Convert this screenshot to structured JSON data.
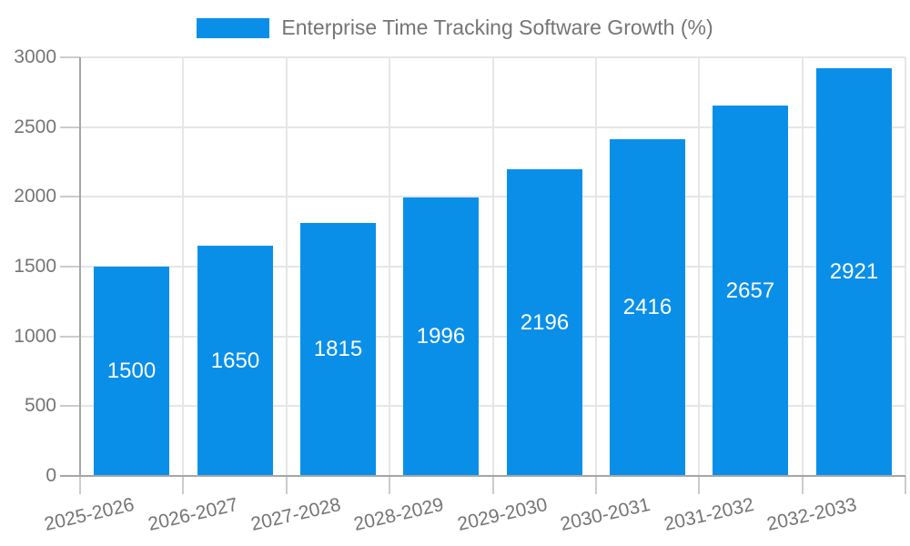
{
  "legend": {
    "label": "Enterprise Time Tracking Software Growth (%)"
  },
  "colors": {
    "bar": "#0a8fe9",
    "bar_label_text": "#ffffff",
    "axis_text": "#757575",
    "gridline": "#e6e6e6",
    "tick": "#cccccc",
    "axis_line": "#a6a6a6",
    "background": "#ffffff"
  },
  "chart_data": {
    "type": "bar",
    "title": "Enterprise Time Tracking Software Growth (%)",
    "categories": [
      "2025-2026",
      "2026-2027",
      "2027-2028",
      "2028-2029",
      "2029-2030",
      "2030-2031",
      "2031-2032",
      "2032-2033"
    ],
    "values": [
      1500,
      1650,
      1815,
      1996,
      2196,
      2416,
      2657,
      2921
    ],
    "bar_value_labels": [
      "1500",
      "1650",
      "1815",
      "1996",
      "2196",
      "2416",
      "2657",
      "2921"
    ],
    "xlabel": "",
    "ylabel": "",
    "ylim": [
      0,
      3000
    ],
    "yticks": [
      0,
      500,
      1000,
      1500,
      2000,
      2500,
      3000
    ],
    "grid": true,
    "legend_position": "top",
    "x_tick_rotation_deg": -13,
    "value_labels_inside_bars": true
  }
}
